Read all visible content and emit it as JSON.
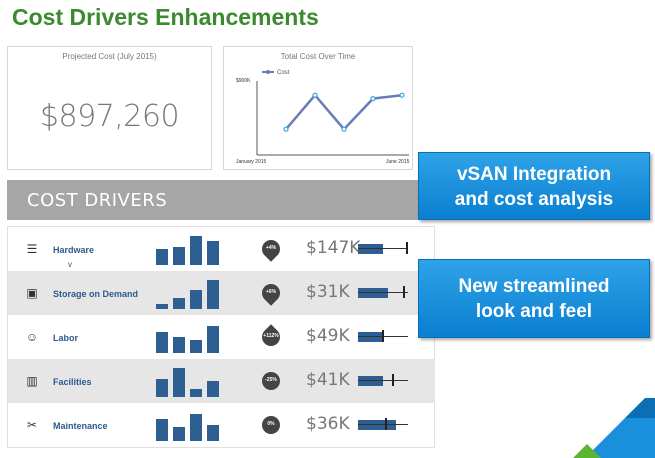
{
  "slide": {
    "title": "Cost Drivers Enhancements"
  },
  "projected_card": {
    "title": "Projected Cost (July 2015)",
    "value": "$897,260"
  },
  "total_card": {
    "title": "Total Cost Over Time",
    "legend": "Cost",
    "y_tick": "$900K",
    "x_start": "January 2015",
    "x_end": "June 2015"
  },
  "chart_data": {
    "type": "line",
    "title": "Total Cost Over Time",
    "series": [
      {
        "name": "Cost",
        "values": [
          0.35,
          0.85,
          0.35,
          0.8,
          0.85
        ]
      }
    ],
    "x_labels": [
      "January 2015",
      "June 2015"
    ],
    "y_label_top": "$900K",
    "color": "#6b7bb8"
  },
  "drivers": {
    "header": "COST DRIVERS",
    "rows": [
      {
        "label": "Hardware",
        "icon": "server-icon",
        "bars": [
          0.5,
          0.55,
          0.9,
          0.75
        ],
        "badge": "+4%",
        "amount": "$147K",
        "range": {
          "bar": 0.5,
          "tick": 0.98
        },
        "shaded": false,
        "caret": "v"
      },
      {
        "label": "Storage on Demand",
        "icon": "window-icon",
        "bars": [
          0.15,
          0.35,
          0.6,
          0.9
        ],
        "badge": "+6%",
        "amount": "$31K",
        "range": {
          "bar": 0.6,
          "tick": 0.92
        },
        "shaded": true,
        "caret": ""
      },
      {
        "label": "Labor",
        "icon": "people-icon",
        "bars": [
          0.65,
          0.5,
          0.4,
          0.85
        ],
        "badge": "+112%",
        "amount": "$49K",
        "range": {
          "bar": 0.5,
          "tick": 0.5
        },
        "shaded": false,
        "caret": ""
      },
      {
        "label": "Facilities",
        "icon": "building-icon",
        "bars": [
          0.55,
          0.9,
          0.25,
          0.5
        ],
        "badge": "-25%",
        "amount": "$41K",
        "range": {
          "bar": 0.5,
          "tick": 0.7
        },
        "shaded": true,
        "caret": ""
      },
      {
        "label": "Maintenance",
        "icon": "tools-icon",
        "bars": [
          0.7,
          0.45,
          0.85,
          0.5
        ],
        "badge": "0%",
        "amount": "$36K",
        "range": {
          "bar": 0.75,
          "tick": 0.55
        },
        "shaded": false,
        "caret": ""
      }
    ]
  },
  "callouts": {
    "first": {
      "line1": "vSAN Integration",
      "line2": "and cost analysis"
    },
    "second": {
      "line1": "New streamlined",
      "line2": "look and feel"
    }
  },
  "colors": {
    "title_green": "#3a8a2e",
    "bar_blue": "#2e5f93",
    "callout_blue": "#1a8fdc",
    "header_gray": "#a6a6a6"
  }
}
